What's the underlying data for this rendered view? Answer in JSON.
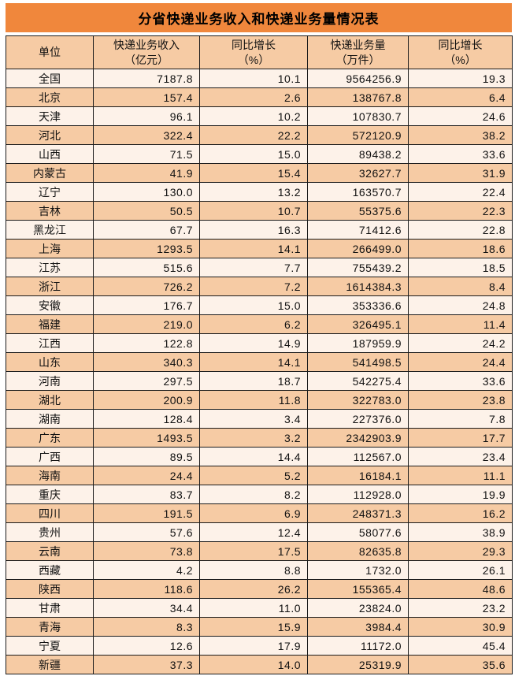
{
  "title": "分省快递业务收入和快递业务量情况表",
  "colors": {
    "title_bar_bg": "#F0873C",
    "row_peach": "#F6CBA4",
    "row_cream": "#FDF2E9",
    "header_bg": "#F6CBA4",
    "border": "#1C1C1C",
    "text": "#111111"
  },
  "table": {
    "headers": [
      {
        "line1": "单位",
        "line2": ""
      },
      {
        "line1": "快递业务收入",
        "line2": "（亿元）"
      },
      {
        "line1": "同比增长",
        "line2": "（%）"
      },
      {
        "line1": "快递业务量",
        "line2": "（万件）"
      },
      {
        "line1": "同比增长",
        "line2": "（%）"
      }
    ],
    "rows": [
      {
        "region": "全国",
        "revenue": "7187.8",
        "revenue_growth": "10.1",
        "volume": "9564256.9",
        "volume_growth": "19.3"
      },
      {
        "region": "北京",
        "revenue": "157.4",
        "revenue_growth": "2.6",
        "volume": "138767.8",
        "volume_growth": "6.4"
      },
      {
        "region": "天津",
        "revenue": "96.1",
        "revenue_growth": "10.2",
        "volume": "107830.7",
        "volume_growth": "24.6"
      },
      {
        "region": "河北",
        "revenue": "322.4",
        "revenue_growth": "22.2",
        "volume": "572120.9",
        "volume_growth": "38.2"
      },
      {
        "region": "山西",
        "revenue": "71.5",
        "revenue_growth": "15.0",
        "volume": "89438.2",
        "volume_growth": "33.6"
      },
      {
        "region": "内蒙古",
        "revenue": "41.9",
        "revenue_growth": "15.4",
        "volume": "32627.7",
        "volume_growth": "31.9"
      },
      {
        "region": "辽宁",
        "revenue": "130.0",
        "revenue_growth": "13.2",
        "volume": "163570.7",
        "volume_growth": "22.4"
      },
      {
        "region": "吉林",
        "revenue": "50.5",
        "revenue_growth": "10.7",
        "volume": "55375.6",
        "volume_growth": "22.3"
      },
      {
        "region": "黑龙江",
        "revenue": "67.7",
        "revenue_growth": "16.3",
        "volume": "71412.6",
        "volume_growth": "22.8"
      },
      {
        "region": "上海",
        "revenue": "1293.5",
        "revenue_growth": "14.1",
        "volume": "266499.0",
        "volume_growth": "18.6"
      },
      {
        "region": "江苏",
        "revenue": "515.6",
        "revenue_growth": "7.7",
        "volume": "755439.2",
        "volume_growth": "18.5"
      },
      {
        "region": "浙江",
        "revenue": "726.2",
        "revenue_growth": "7.2",
        "volume": "1614384.3",
        "volume_growth": "8.4"
      },
      {
        "region": "安徽",
        "revenue": "176.7",
        "revenue_growth": "15.0",
        "volume": "353336.6",
        "volume_growth": "24.8"
      },
      {
        "region": "福建",
        "revenue": "219.0",
        "revenue_growth": "6.2",
        "volume": "326495.1",
        "volume_growth": "11.4"
      },
      {
        "region": "江西",
        "revenue": "122.8",
        "revenue_growth": "14.9",
        "volume": "187959.9",
        "volume_growth": "24.2"
      },
      {
        "region": "山东",
        "revenue": "340.3",
        "revenue_growth": "14.1",
        "volume": "541498.5",
        "volume_growth": "24.4"
      },
      {
        "region": "河南",
        "revenue": "297.5",
        "revenue_growth": "18.7",
        "volume": "542275.4",
        "volume_growth": "33.6"
      },
      {
        "region": "湖北",
        "revenue": "200.9",
        "revenue_growth": "11.8",
        "volume": "322783.0",
        "volume_growth": "23.8"
      },
      {
        "region": "湖南",
        "revenue": "128.4",
        "revenue_growth": "3.4",
        "volume": "227376.0",
        "volume_growth": "7.8"
      },
      {
        "region": "广东",
        "revenue": "1493.5",
        "revenue_growth": "3.2",
        "volume": "2342903.9",
        "volume_growth": "17.7"
      },
      {
        "region": "广西",
        "revenue": "89.5",
        "revenue_growth": "14.4",
        "volume": "112567.0",
        "volume_growth": "23.4"
      },
      {
        "region": "海南",
        "revenue": "24.4",
        "revenue_growth": "5.2",
        "volume": "16184.1",
        "volume_growth": "11.1"
      },
      {
        "region": "重庆",
        "revenue": "83.7",
        "revenue_growth": "8.2",
        "volume": "112928.0",
        "volume_growth": "19.9"
      },
      {
        "region": "四川",
        "revenue": "191.5",
        "revenue_growth": "6.9",
        "volume": "248371.3",
        "volume_growth": "16.2"
      },
      {
        "region": "贵州",
        "revenue": "57.6",
        "revenue_growth": "12.4",
        "volume": "58077.6",
        "volume_growth": "38.9"
      },
      {
        "region": "云南",
        "revenue": "73.8",
        "revenue_growth": "17.5",
        "volume": "82635.8",
        "volume_growth": "29.3"
      },
      {
        "region": "西藏",
        "revenue": "4.2",
        "revenue_growth": "8.8",
        "volume": "1732.0",
        "volume_growth": "26.1"
      },
      {
        "region": "陕西",
        "revenue": "118.6",
        "revenue_growth": "26.2",
        "volume": "155365.4",
        "volume_growth": "48.6"
      },
      {
        "region": "甘肃",
        "revenue": "34.4",
        "revenue_growth": "11.0",
        "volume": "23824.0",
        "volume_growth": "23.2"
      },
      {
        "region": "青海",
        "revenue": "8.3",
        "revenue_growth": "15.9",
        "volume": "3984.4",
        "volume_growth": "30.9"
      },
      {
        "region": "宁夏",
        "revenue": "12.6",
        "revenue_growth": "17.9",
        "volume": "11172.0",
        "volume_growth": "45.4"
      },
      {
        "region": "新疆",
        "revenue": "37.3",
        "revenue_growth": "14.0",
        "volume": "25319.9",
        "volume_growth": "35.6"
      }
    ]
  },
  "chart_data": {
    "type": "table",
    "title": "分省快递业务收入和快递业务量情况表",
    "columns": [
      "单位",
      "快递业务收入（亿元）",
      "同比增长（%）",
      "快递业务量（万件）",
      "同比增长（%）"
    ],
    "rows": [
      [
        "全国",
        7187.8,
        10.1,
        9564256.9,
        19.3
      ],
      [
        "北京",
        157.4,
        2.6,
        138767.8,
        6.4
      ],
      [
        "天津",
        96.1,
        10.2,
        107830.7,
        24.6
      ],
      [
        "河北",
        322.4,
        22.2,
        572120.9,
        38.2
      ],
      [
        "山西",
        71.5,
        15.0,
        89438.2,
        33.6
      ],
      [
        "内蒙古",
        41.9,
        15.4,
        32627.7,
        31.9
      ],
      [
        "辽宁",
        130.0,
        13.2,
        163570.7,
        22.4
      ],
      [
        "吉林",
        50.5,
        10.7,
        55375.6,
        22.3
      ],
      [
        "黑龙江",
        67.7,
        16.3,
        71412.6,
        22.8
      ],
      [
        "上海",
        1293.5,
        14.1,
        266499.0,
        18.6
      ],
      [
        "江苏",
        515.6,
        7.7,
        755439.2,
        18.5
      ],
      [
        "浙江",
        726.2,
        7.2,
        1614384.3,
        8.4
      ],
      [
        "安徽",
        176.7,
        15.0,
        353336.6,
        24.8
      ],
      [
        "福建",
        219.0,
        6.2,
        326495.1,
        11.4
      ],
      [
        "江西",
        122.8,
        14.9,
        187959.9,
        24.2
      ],
      [
        "山东",
        340.3,
        14.1,
        541498.5,
        24.4
      ],
      [
        "河南",
        297.5,
        18.7,
        542275.4,
        33.6
      ],
      [
        "湖北",
        200.9,
        11.8,
        322783.0,
        23.8
      ],
      [
        "湖南",
        128.4,
        3.4,
        227376.0,
        7.8
      ],
      [
        "广东",
        1493.5,
        3.2,
        2342903.9,
        17.7
      ],
      [
        "广西",
        89.5,
        14.4,
        112567.0,
        23.4
      ],
      [
        "海南",
        24.4,
        5.2,
        16184.1,
        11.1
      ],
      [
        "重庆",
        83.7,
        8.2,
        112928.0,
        19.9
      ],
      [
        "四川",
        191.5,
        6.9,
        248371.3,
        16.2
      ],
      [
        "贵州",
        57.6,
        12.4,
        58077.6,
        38.9
      ],
      [
        "云南",
        73.8,
        17.5,
        82635.8,
        29.3
      ],
      [
        "西藏",
        4.2,
        8.8,
        1732.0,
        26.1
      ],
      [
        "陕西",
        118.6,
        26.2,
        155365.4,
        48.6
      ],
      [
        "甘肃",
        34.4,
        11.0,
        23824.0,
        23.2
      ],
      [
        "青海",
        8.3,
        15.9,
        3984.4,
        30.9
      ],
      [
        "宁夏",
        12.6,
        17.9,
        11172.0,
        45.4
      ],
      [
        "新疆",
        37.3,
        14.0,
        25319.9,
        35.6
      ]
    ]
  }
}
